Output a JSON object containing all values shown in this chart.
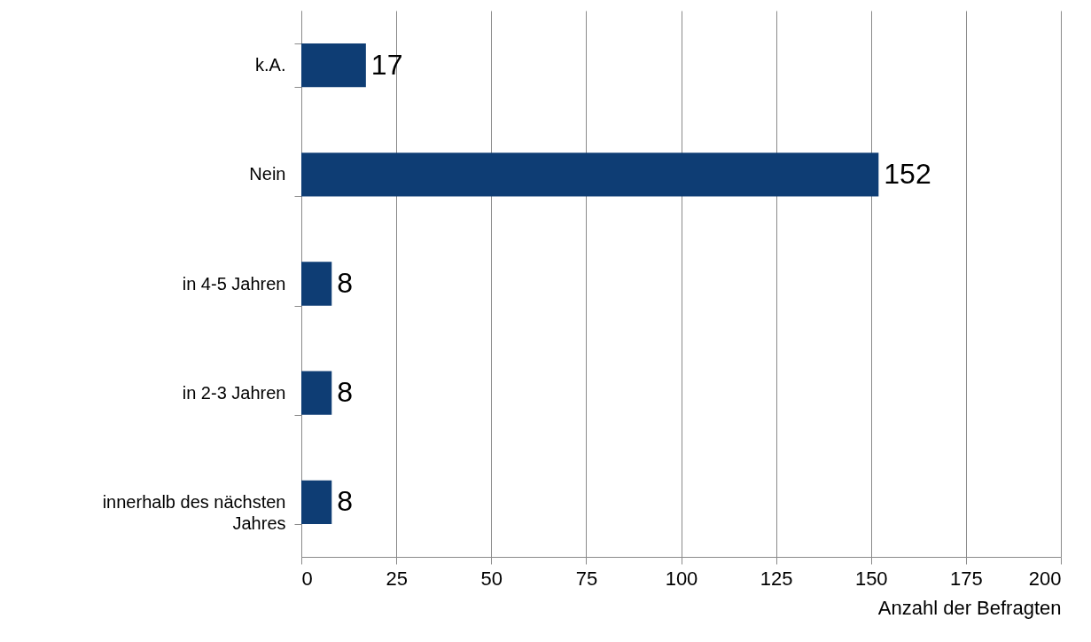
{
  "chart_data": {
    "type": "bar",
    "orientation": "horizontal",
    "categories": [
      "k.A.",
      "Nein",
      "in 4-5 Jahren",
      "in 2-3 Jahren",
      "innerhalb des nächsten Jahres"
    ],
    "values": [
      17,
      152,
      8,
      8,
      8
    ],
    "color": "#0e3d74",
    "data_labels": true,
    "xlabel": "Anzahl der Befragten",
    "xlim": [
      0,
      200
    ],
    "xticks": [
      0,
      25,
      50,
      75,
      100,
      125,
      150,
      175,
      200
    ],
    "grid": "x"
  }
}
